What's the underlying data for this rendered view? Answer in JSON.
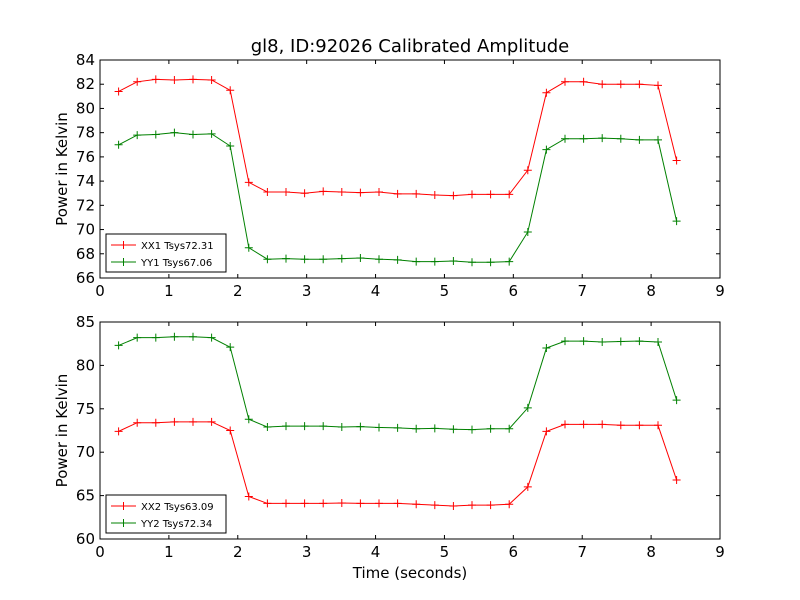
{
  "title": "gl8, ID:92026 Calibrated Amplitude",
  "xlabel": "Time (seconds)",
  "chart_data": [
    {
      "type": "line",
      "ylabel": "Power in Kelvin",
      "xlim": [
        0,
        9
      ],
      "ylim": [
        66,
        84
      ],
      "xticks": [
        0,
        1,
        2,
        3,
        4,
        5,
        6,
        7,
        8,
        9
      ],
      "yticks": [
        66,
        68,
        70,
        72,
        74,
        76,
        78,
        80,
        82,
        84
      ],
      "legend_position": "lower-left",
      "x": [
        0.27,
        0.54,
        0.81,
        1.08,
        1.35,
        1.62,
        1.89,
        2.16,
        2.43,
        2.7,
        2.97,
        3.24,
        3.51,
        3.78,
        4.05,
        4.32,
        4.59,
        4.86,
        5.13,
        5.4,
        5.67,
        5.94,
        6.21,
        6.48,
        6.75,
        7.02,
        7.29,
        7.56,
        7.83,
        8.1,
        8.37
      ],
      "series": [
        {
          "name": "XX1 Tsys72.31",
          "color": "#ff0000",
          "values": [
            81.4,
            82.2,
            82.4,
            82.35,
            82.4,
            82.35,
            81.5,
            73.9,
            73.1,
            73.1,
            73.0,
            73.15,
            73.1,
            73.05,
            73.1,
            72.95,
            72.95,
            72.85,
            72.8,
            72.9,
            72.9,
            72.9,
            74.9,
            81.3,
            82.2,
            82.2,
            82.0,
            82.0,
            82.0,
            81.9,
            75.7
          ]
        },
        {
          "name": "YY1 Tsys67.06",
          "color": "#008000",
          "values": [
            77.0,
            77.8,
            77.85,
            78.0,
            77.85,
            77.9,
            76.9,
            68.5,
            67.55,
            67.6,
            67.55,
            67.55,
            67.6,
            67.65,
            67.55,
            67.5,
            67.35,
            67.35,
            67.4,
            67.3,
            67.3,
            67.35,
            69.8,
            76.6,
            77.5,
            77.5,
            77.55,
            77.5,
            77.4,
            77.4,
            70.7
          ]
        }
      ]
    },
    {
      "type": "line",
      "ylabel": "Power in Kelvin",
      "xlim": [
        0,
        9
      ],
      "ylim": [
        60,
        85
      ],
      "xticks": [
        0,
        1,
        2,
        3,
        4,
        5,
        6,
        7,
        8,
        9
      ],
      "yticks": [
        60,
        65,
        70,
        75,
        80,
        85
      ],
      "legend_position": "lower-left",
      "x": [
        0.27,
        0.54,
        0.81,
        1.08,
        1.35,
        1.62,
        1.89,
        2.16,
        2.43,
        2.7,
        2.97,
        3.24,
        3.51,
        3.78,
        4.05,
        4.32,
        4.59,
        4.86,
        5.13,
        5.4,
        5.67,
        5.94,
        6.21,
        6.48,
        6.75,
        7.02,
        7.29,
        7.56,
        7.83,
        8.1,
        8.37
      ],
      "series": [
        {
          "name": "XX2 Tsys63.09",
          "color": "#ff0000",
          "values": [
            72.4,
            73.4,
            73.4,
            73.5,
            73.5,
            73.5,
            72.5,
            64.9,
            64.1,
            64.1,
            64.1,
            64.1,
            64.15,
            64.1,
            64.1,
            64.1,
            64.0,
            63.9,
            63.8,
            63.9,
            63.9,
            64.0,
            66.0,
            72.4,
            73.2,
            73.2,
            73.2,
            73.1,
            73.1,
            73.1,
            66.8
          ]
        },
        {
          "name": "YY2 Tsys72.34",
          "color": "#008000",
          "values": [
            82.3,
            83.2,
            83.2,
            83.3,
            83.3,
            83.2,
            82.1,
            73.8,
            72.9,
            73.0,
            73.0,
            73.0,
            72.9,
            72.95,
            72.85,
            72.8,
            72.7,
            72.75,
            72.65,
            72.6,
            72.7,
            72.7,
            75.1,
            82.0,
            82.8,
            82.8,
            82.7,
            82.75,
            82.8,
            82.7,
            76.0
          ]
        }
      ]
    }
  ]
}
